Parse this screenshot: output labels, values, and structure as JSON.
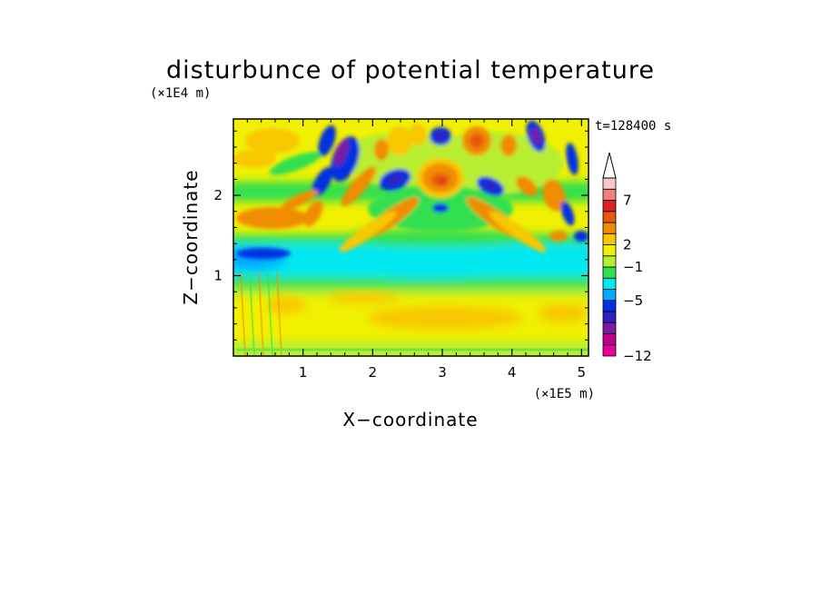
{
  "chart_data": {
    "type": "heatmap",
    "title": "disturbunce of potential temperature",
    "xlabel": "X−coordinate",
    "ylabel": "Z−coordinate",
    "x_scale_label": "(×1E5 m)",
    "y_scale_label": "(×1E4 m)",
    "time_label": "t=128400 s",
    "xlim": [
      0,
      5.1
    ],
    "ylim": [
      0,
      2.95
    ],
    "x_ticks": [
      1,
      2,
      3,
      4,
      5
    ],
    "y_ticks": [
      1,
      2
    ],
    "x_tick_labels": [
      "1",
      "2",
      "3",
      "4",
      "5"
    ],
    "y_tick_labels": [
      "1",
      "2"
    ],
    "colorbar": {
      "levels": [
        -12,
        -5,
        -1,
        2,
        7
      ],
      "level_labels": [
        "−12",
        "−5",
        "−1",
        "2",
        "7"
      ],
      "colors": [
        "#e8009c",
        "#c0008c",
        "#7a1aa6",
        "#3020c0",
        "#0030e0",
        "#00aaff",
        "#00e8f0",
        "#30e050",
        "#b8ee30",
        "#f0f000",
        "#f8c800",
        "#f08c00",
        "#e85810",
        "#e02020",
        "#f08080",
        "#f8c8c8"
      ],
      "extend": "max"
    },
    "grid": false
  }
}
